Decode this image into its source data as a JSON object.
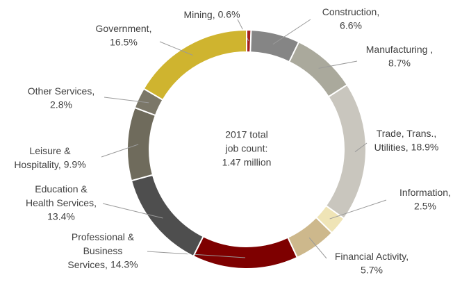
{
  "chart_data": {
    "type": "donut",
    "center_text": [
      "2017 total",
      "job count:",
      "1.47 million"
    ],
    "categories": [
      "Mining,",
      "Construction,",
      "Manufacturing ,",
      "Trade, Trans.,\nUtilities,",
      "Information,",
      "Financial Activity,",
      "Professional &\nBusiness\nServices,",
      "Education &\nHealth Services,",
      "Leisure &\nHospitality,",
      "Other Services,",
      "Government,"
    ],
    "values": [
      0.6,
      6.6,
      8.7,
      18.9,
      2.5,
      5.7,
      14.3,
      13.4,
      9.9,
      2.8,
      16.5
    ],
    "value_labels": [
      "0.6%",
      "6.6%",
      "8.7%",
      "18.9%",
      "2.5%",
      "5.7%",
      "14.3%",
      "13.4%",
      "9.9%",
      "2.8%",
      "16.5%"
    ],
    "colors": [
      "#a31f1f",
      "#858585",
      "#aaa99c",
      "#c9c6be",
      "#efe4b6",
      "#cdb88c",
      "#7e0000",
      "#4e4e4e",
      "#6f6b5c",
      "#7b7768",
      "#cfb42f"
    ]
  }
}
